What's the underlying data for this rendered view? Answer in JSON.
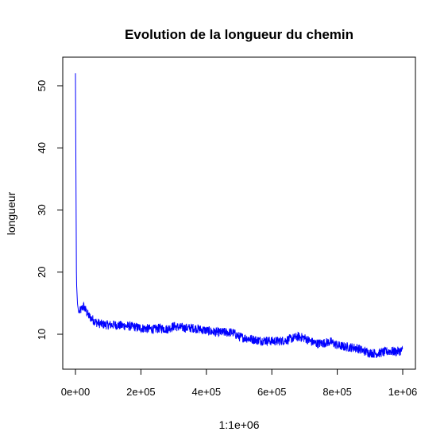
{
  "chart_data": {
    "type": "line",
    "title": "Evolution de la longueur du chemin",
    "xlabel": "1:1e+06",
    "ylabel": "longueur",
    "xlim": [
      0,
      1000000
    ],
    "ylim": [
      5,
      52
    ],
    "x_ticks": [
      {
        "value": 0,
        "label": "0e+00"
      },
      {
        "value": 200000,
        "label": "2e+05"
      },
      {
        "value": 400000,
        "label": "4e+05"
      },
      {
        "value": 600000,
        "label": "6e+05"
      },
      {
        "value": 800000,
        "label": "8e+05"
      },
      {
        "value": 1000000,
        "label": "1e+06"
      }
    ],
    "y_ticks": [
      {
        "value": 10,
        "label": "10"
      },
      {
        "value": 20,
        "label": "20"
      },
      {
        "value": 30,
        "label": "30"
      },
      {
        "value": 40,
        "label": "40"
      },
      {
        "value": 50,
        "label": "50"
      }
    ],
    "grid": false,
    "legend": "none",
    "series": [
      {
        "color": "#0000ff",
        "x": [
          0,
          3000,
          6000,
          10000,
          15000,
          20000,
          25000,
          30000,
          40000,
          50000,
          60000,
          70000,
          80000,
          100000,
          120000,
          140000,
          160000,
          180000,
          200000,
          220000,
          240000,
          260000,
          280000,
          300000,
          320000,
          340000,
          360000,
          380000,
          400000,
          420000,
          440000,
          460000,
          480000,
          500000,
          520000,
          540000,
          560000,
          580000,
          600000,
          620000,
          640000,
          660000,
          680000,
          700000,
          720000,
          740000,
          760000,
          780000,
          800000,
          820000,
          840000,
          860000,
          880000,
          900000,
          920000,
          940000,
          960000,
          980000,
          1000000
        ],
        "y": [
          52,
          18.5,
          15,
          13.5,
          13.8,
          14.2,
          14.5,
          14.0,
          13.0,
          12.5,
          12.0,
          11.8,
          11.6,
          11.5,
          11.5,
          11.4,
          11.3,
          11.2,
          11.0,
          10.9,
          10.8,
          11.0,
          10.8,
          11.3,
          11.1,
          11.0,
          11.0,
          10.8,
          10.6,
          10.4,
          10.3,
          10.3,
          10.3,
          9.6,
          9.4,
          9.2,
          9.0,
          9.0,
          8.9,
          8.9,
          9.0,
          9.3,
          9.6,
          9.4,
          8.8,
          8.5,
          8.6,
          8.8,
          8.2,
          8.0,
          7.9,
          7.8,
          7.3,
          7.0,
          6.9,
          7.1,
          7.3,
          7.2,
          7.4
        ]
      }
    ]
  }
}
